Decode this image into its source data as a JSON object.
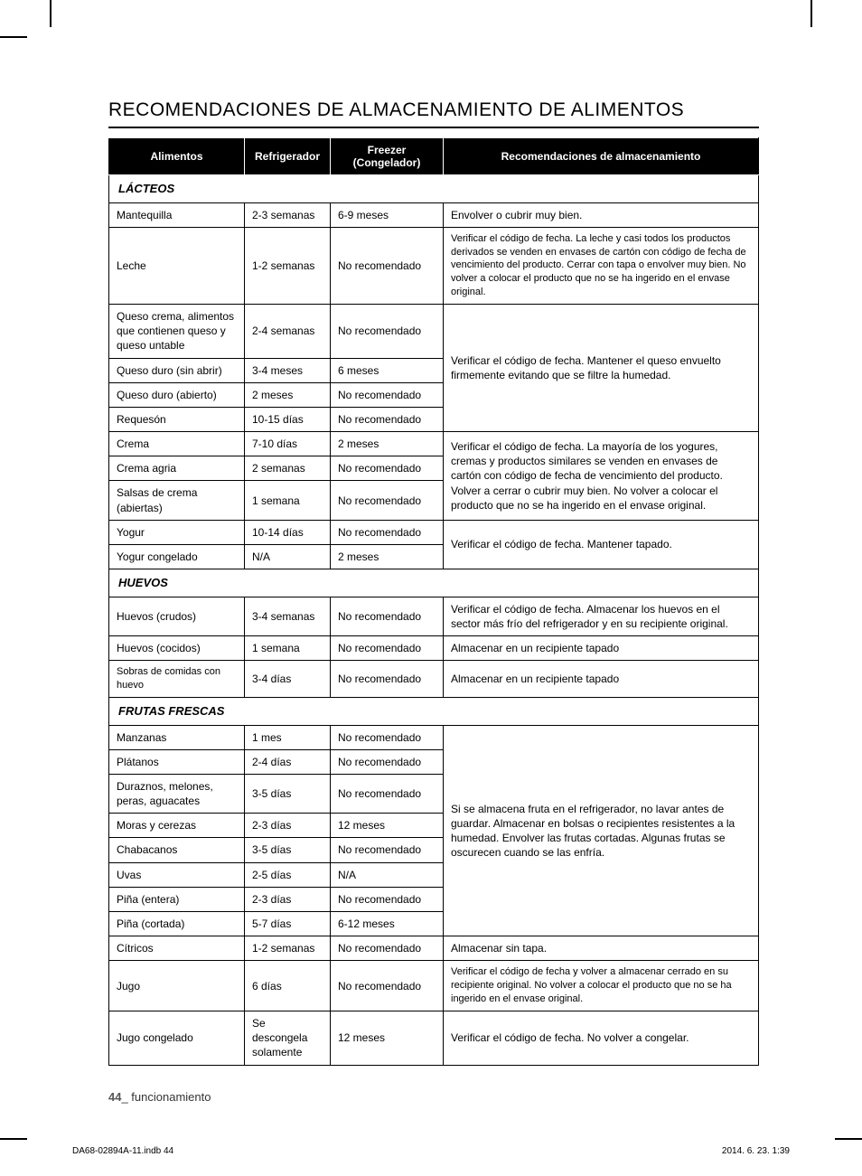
{
  "title": "RECOMENDACIONES DE ALMACENAMIENTO DE ALIMENTOS",
  "headers": {
    "food": "Alimentos",
    "fridge": "Refrigerador",
    "freezer": "Freezer (Congelador)",
    "rec": "Recomendaciones de almacenamiento"
  },
  "sections": {
    "lacteos": "LÁCTEOS",
    "huevos": "HUEVOS",
    "frutas": "FRUTAS FRESCAS"
  },
  "rows": {
    "mantequilla": {
      "food": "Mantequilla",
      "fridge": "2-3 semanas",
      "freezer": "6-9 meses",
      "rec": "Envolver o cubrir muy bien."
    },
    "leche": {
      "food": "Leche",
      "fridge": "1-2 semanas",
      "freezer": "No recomendado",
      "rec": "Verificar el código de fecha. La leche y casi todos los productos derivados se venden en envases de cartón con código de fecha de vencimiento del producto. Cerrar con tapa o envolver muy bien. No volver a colocar el producto que no se ha ingerido en el envase original."
    },
    "queso_crema": {
      "food": "Queso crema, alimentos que contienen queso y queso untable",
      "fridge": "2-4 semanas",
      "freezer": "No recomendado"
    },
    "queso_group_rec": "Verificar el código de fecha. Mantener el queso envuelto firmemente evitando que se filtre la humedad.",
    "queso_sin_abrir": {
      "food": "Queso duro (sin abrir)",
      "fridge": "3-4 meses",
      "freezer": "6 meses"
    },
    "queso_abierto": {
      "food": "Queso duro (abierto)",
      "fridge": "2 meses",
      "freezer": "No recomendado"
    },
    "requeson": {
      "food": "Requesón",
      "fridge": "10-15 días",
      "freezer": "No recomendado"
    },
    "crema": {
      "food": "Crema",
      "fridge": "7-10 días",
      "freezer": "2 meses"
    },
    "crema_group_rec": "Verificar el código de fecha. La mayoría de los yogures, cremas y productos similares se venden en envases de cartón con código de fecha de vencimiento del producto. Volver a cerrar o cubrir muy bien. No volver a colocar el producto que no se ha ingerido en el envase original.",
    "crema_agria": {
      "food": "Crema agria",
      "fridge": "2 semanas",
      "freezer": "No recomendado"
    },
    "salsas_crema": {
      "food": "Salsas de crema (abiertas)",
      "fridge": "1 semana",
      "freezer": "No recomendado"
    },
    "yogur": {
      "food": "Yogur",
      "fridge": "10-14 días",
      "freezer": "No recomendado"
    },
    "yogur_rec": "Verificar el código de fecha. Mantener tapado.",
    "yogur_cong": {
      "food": "Yogur congelado",
      "fridge": "N/A",
      "freezer": "2 meses"
    },
    "huevos_crudos": {
      "food": "Huevos (crudos)",
      "fridge": "3-4 semanas",
      "freezer": "No recomendado",
      "rec": "Verificar el código de fecha. Almacenar los huevos en el sector más frío del refrigerador y en su recipiente original."
    },
    "huevos_cocidos": {
      "food": "Huevos (cocidos)",
      "fridge": "1 semana",
      "freezer": "No recomendado",
      "rec": "Almacenar en un recipiente tapado"
    },
    "sobras_huevo": {
      "food": "Sobras de comidas con huevo",
      "fridge": "3-4 días",
      "freezer": "No recomendado",
      "rec": "Almacenar en un recipiente tapado"
    },
    "manzanas": {
      "food": "Manzanas",
      "fridge": "1 mes",
      "freezer": "No recomendado"
    },
    "frutas_rec": "Si se almacena fruta en el refrigerador, no lavar antes de guardar. Almacenar en bolsas o recipientes resistentes a la humedad. Envolver las frutas cortadas. Algunas frutas se oscurecen cuando se las enfría.",
    "platanos": {
      "food": "Plátanos",
      "fridge": "2-4 días",
      "freezer": "No recomendado"
    },
    "duraznos": {
      "food": "Duraznos, melones, peras, aguacates",
      "fridge": "3-5 días",
      "freezer": "No recomendado"
    },
    "moras": {
      "food": "Moras y cerezas",
      "fridge": "2-3 días",
      "freezer": "12 meses"
    },
    "chabacanos": {
      "food": "Chabacanos",
      "fridge": "3-5 días",
      "freezer": "No recomendado"
    },
    "uvas": {
      "food": "Uvas",
      "fridge": "2-5 días",
      "freezer": "N/A"
    },
    "pina_entera": {
      "food": "Piña (entera)",
      "fridge": "2-3 días",
      "freezer": "No recomendado"
    },
    "pina_cortada": {
      "food": "Piña (cortada)",
      "fridge": "5-7 días",
      "freezer": "6-12 meses"
    },
    "citricos": {
      "food": "Cítricos",
      "fridge": "1-2 semanas",
      "freezer": "No recomendado",
      "rec": "Almacenar sin tapa."
    },
    "jugo": {
      "food": "Jugo",
      "fridge": "6 días",
      "freezer": "No recomendado",
      "rec": "Verificar el código de fecha y volver a almacenar cerrado en su recipiente original. No volver a colocar el producto que no se ha ingerido en el envase original."
    },
    "jugo_cong": {
      "food": "Jugo congelado",
      "fridge": "Se descongela solamente",
      "freezer": "12 meses",
      "rec": "Verificar el código de fecha. No volver a congelar."
    }
  },
  "footer": {
    "page_num": "44",
    "label": "_ funcionamiento",
    "doc": "DA68-02894A-11.indb   44",
    "date": "2014. 6. 23.   1:39"
  }
}
